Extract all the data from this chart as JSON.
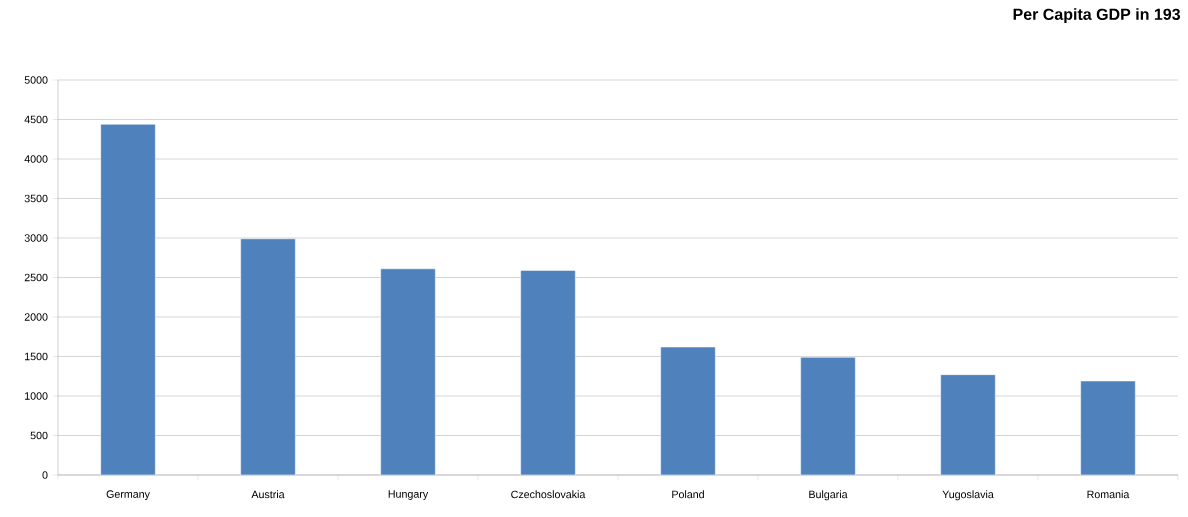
{
  "chart_data": {
    "type": "bar",
    "title": "Per Capita GDP in 193",
    "categories": [
      "Germany",
      "Austria",
      "Hungary",
      "Czechoslovakia",
      "Poland",
      "Bulgaria",
      "Yugoslavia",
      "Romania"
    ],
    "values": [
      4440,
      2990,
      2610,
      2590,
      1620,
      1490,
      1270,
      1190
    ],
    "color": "#4f81bd",
    "ylim": [
      0,
      5000
    ],
    "yticks": [
      0,
      500,
      1000,
      1500,
      2000,
      2500,
      3000,
      3500,
      4000,
      4500,
      5000
    ],
    "grid": "y"
  }
}
